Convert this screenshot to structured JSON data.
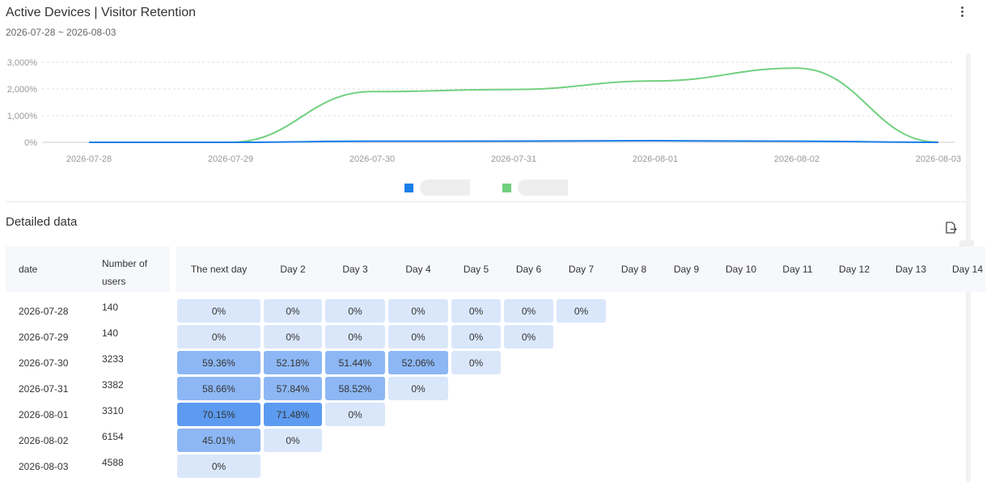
{
  "header": {
    "title": "Active Devices | Visitor Retention",
    "date_range": "2026-07-28 ~ 2026-08-03"
  },
  "chart_data": {
    "type": "line",
    "x": [
      "2026-07-28",
      "2026-07-29",
      "2026-07-30",
      "2026-07-31",
      "2026-08-01",
      "2026-08-02",
      "2026-08-03"
    ],
    "ylim": [
      0,
      3000
    ],
    "yticks": [
      "0%",
      "1,000%",
      "2,000%",
      "3,000%"
    ],
    "ytick_values": [
      0,
      1000,
      2000,
      3000
    ],
    "grid": true,
    "legend_placement": "bottom-center",
    "series": [
      {
        "color": "#1a7ee8",
        "values": [
          0,
          0,
          40,
          45,
          60,
          40,
          0
        ]
      },
      {
        "color": "#72d07f",
        "values": [
          0,
          0,
          1900,
          1980,
          2300,
          2780,
          0
        ]
      }
    ]
  },
  "detail": {
    "title": "Detailed data",
    "columns": {
      "date": "date",
      "users": "Number of users",
      "days": [
        "The next day",
        "Day 2",
        "Day 3",
        "Day 4",
        "Day 5",
        "Day 6",
        "Day 7",
        "Day 8",
        "Day 9",
        "Day 10",
        "Day 11",
        "Day 12",
        "Day 13",
        "Day 14"
      ]
    },
    "rows": [
      {
        "date": "2026-07-28",
        "users": "140",
        "values": [
          "0%",
          "0%",
          "0%",
          "0%",
          "0%",
          "0%",
          "0%"
        ]
      },
      {
        "date": "2026-07-29",
        "users": "140",
        "values": [
          "0%",
          "0%",
          "0%",
          "0%",
          "0%",
          "0%"
        ]
      },
      {
        "date": "2026-07-30",
        "users": "3233",
        "values": [
          "59.36%",
          "52.18%",
          "51.44%",
          "52.06%",
          "0%"
        ]
      },
      {
        "date": "2026-07-31",
        "users": "3382",
        "values": [
          "58.66%",
          "57.84%",
          "58.52%",
          "0%"
        ]
      },
      {
        "date": "2026-08-01",
        "users": "3310",
        "values": [
          "70.15%",
          "71.48%",
          "0%"
        ]
      },
      {
        "date": "2026-08-02",
        "users": "6154",
        "values": [
          "45.01%",
          "0%"
        ]
      },
      {
        "date": "2026-08-03",
        "users": "4588",
        "values": [
          "0%"
        ]
      }
    ],
    "cell_colors": {
      "zero": "#dae7fb",
      "mid": "#8db7f4",
      "high": "#5c9bf0"
    }
  },
  "icons": {
    "more": "more-vertical-icon",
    "export": "export-icon"
  }
}
